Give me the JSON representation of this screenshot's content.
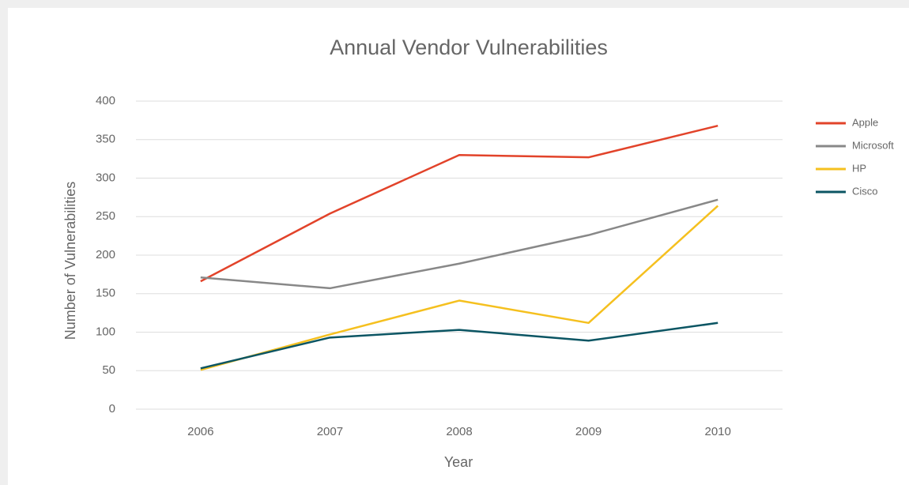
{
  "chart_data": {
    "type": "line",
    "title": "Annual Vendor Vulnerabilities",
    "xlabel": "Year",
    "ylabel": "Number of Vulnerabilities",
    "categories": [
      "2006",
      "2007",
      "2008",
      "2009",
      "2010"
    ],
    "series": [
      {
        "name": "Apple",
        "color": "#e2432a",
        "values": [
          166,
          254,
          330,
          327,
          368
        ]
      },
      {
        "name": "Microsoft",
        "color": "#888888",
        "values": [
          171,
          157,
          189,
          226,
          272
        ]
      },
      {
        "name": "HP",
        "color": "#f5c01f",
        "values": [
          51,
          97,
          141,
          112,
          264
        ]
      },
      {
        "name": "Cisco",
        "color": "#0b5563",
        "values": [
          53,
          93,
          103,
          89,
          112
        ]
      }
    ],
    "ylim": [
      0,
      400
    ],
    "yticks": [
      0,
      50,
      100,
      150,
      200,
      250,
      300,
      350,
      400
    ],
    "grid": true,
    "legend": "right"
  }
}
